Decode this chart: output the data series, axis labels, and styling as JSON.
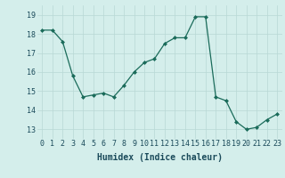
{
  "x": [
    0,
    1,
    2,
    3,
    4,
    5,
    6,
    7,
    8,
    9,
    10,
    11,
    12,
    13,
    14,
    15,
    16,
    17,
    18,
    19,
    20,
    21,
    22,
    23
  ],
  "y": [
    18.2,
    18.2,
    17.6,
    15.8,
    14.7,
    14.8,
    14.9,
    14.7,
    15.3,
    16.0,
    16.5,
    16.7,
    17.5,
    17.8,
    17.8,
    18.9,
    18.9,
    14.7,
    14.5,
    13.4,
    13.0,
    13.1,
    13.5,
    13.8
  ],
  "line_color": "#1a6b5a",
  "marker": "D",
  "marker_size": 2.0,
  "bg_color": "#d4eeeb",
  "grid_color": "#b8d8d5",
  "xlabel": "Humidex (Indice chaleur)",
  "xlabel_fontsize": 7,
  "xlabel_color": "#1a4a5a",
  "tick_label_color": "#1a4a5a",
  "tick_fontsize": 6,
  "ylim": [
    12.5,
    19.5
  ],
  "xlim": [
    -0.5,
    23.5
  ],
  "yticks": [
    13,
    14,
    15,
    16,
    17,
    18,
    19
  ],
  "xticks": [
    0,
    1,
    2,
    3,
    4,
    5,
    6,
    7,
    8,
    9,
    10,
    11,
    12,
    13,
    14,
    15,
    16,
    17,
    18,
    19,
    20,
    21,
    22,
    23
  ]
}
